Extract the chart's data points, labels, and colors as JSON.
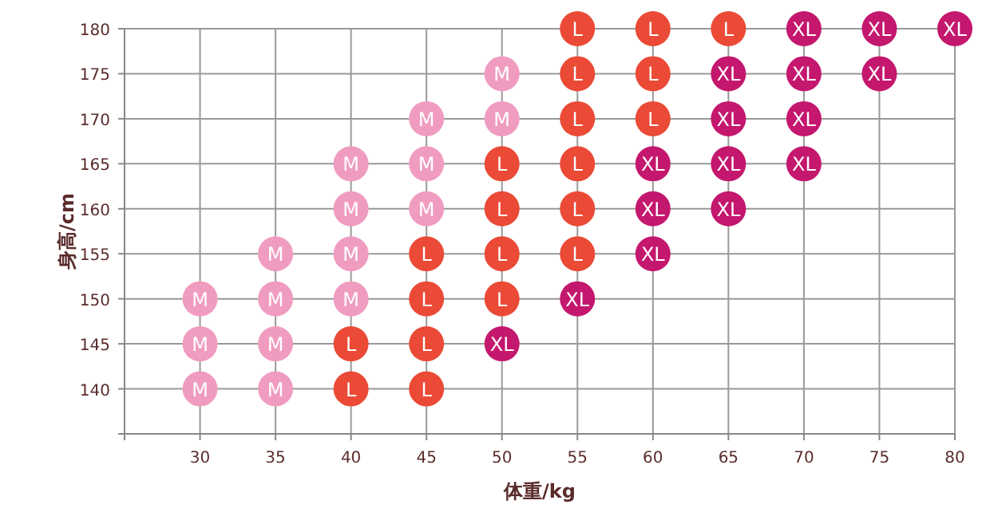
{
  "chart_data": {
    "type": "scatter",
    "xlabel": "体重/kg",
    "ylabel": "身高/cm",
    "xlim": [
      25,
      80
    ],
    "ylim": [
      135,
      180
    ],
    "xticks": [
      {
        "value": 25,
        "label": null
      },
      30,
      35,
      40,
      45,
      50,
      55,
      60,
      65,
      70,
      75,
      80
    ],
    "yticks": [
      {
        "value": 135,
        "label": null
      },
      140,
      145,
      150,
      155,
      160,
      165,
      170,
      175,
      180
    ],
    "grid": true,
    "marker": "circle",
    "series": [
      {
        "name": "M",
        "color": "#f09cc0",
        "x": [
          30,
          30,
          30,
          35,
          35,
          35,
          35,
          40,
          40,
          40,
          40,
          45,
          45,
          45,
          50,
          50
        ],
        "values": [
          140,
          145,
          150,
          140,
          145,
          150,
          155,
          150,
          155,
          160,
          165,
          160,
          165,
          170,
          170,
          175
        ]
      },
      {
        "name": "L",
        "color": "#ea4a36",
        "x": [
          40,
          40,
          45,
          45,
          45,
          45,
          50,
          50,
          50,
          50,
          55,
          55,
          55,
          55,
          55,
          55,
          60,
          60,
          60,
          65
        ],
        "values": [
          140,
          145,
          140,
          145,
          150,
          155,
          150,
          155,
          160,
          165,
          155,
          160,
          165,
          170,
          175,
          180,
          170,
          175,
          180,
          180
        ]
      },
      {
        "name": "XL",
        "color": "#c4176e",
        "x": [
          50,
          55,
          60,
          60,
          60,
          65,
          65,
          65,
          65,
          70,
          70,
          70,
          70,
          75,
          75,
          80
        ],
        "values": [
          145,
          150,
          155,
          160,
          165,
          160,
          165,
          170,
          175,
          165,
          170,
          175,
          180,
          175,
          180,
          180
        ]
      }
    ]
  }
}
